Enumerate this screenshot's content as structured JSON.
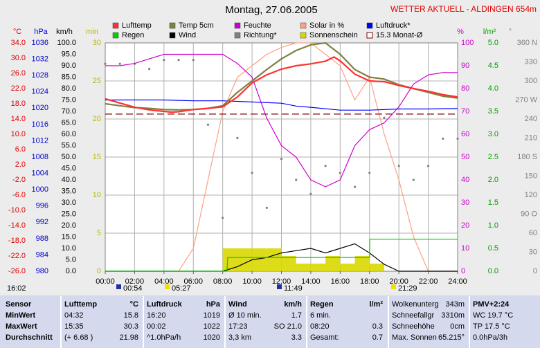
{
  "header": {
    "title": "Montag, 27.06.2005",
    "station": "WETTER AKTUELL - ALDINGEN 654m",
    "updated": "16:02",
    "markers": [
      "00:54",
      "05:27",
      "11:49",
      "21:29"
    ]
  },
  "chart_data": {
    "type": "line",
    "grid": true,
    "grid_axis": 3,
    "xlim": [
      0,
      24
    ],
    "xticks": [
      {
        "value": 0,
        "label": "00:00"
      },
      {
        "value": 2,
        "label": "02:00"
      },
      {
        "value": 4,
        "label": "04:00"
      },
      {
        "value": 6,
        "label": "06:00"
      },
      {
        "value": 8,
        "label": "08:00"
      },
      {
        "value": 10,
        "label": "10:00"
      },
      {
        "value": 12,
        "label": "12:00"
      },
      {
        "value": 14,
        "label": "14:00"
      },
      {
        "value": 16,
        "label": "16:00"
      },
      {
        "value": 18,
        "label": "18:00"
      },
      {
        "value": 20,
        "label": "20:00"
      },
      {
        "value": 22,
        "label": "22:00"
      },
      {
        "value": 24,
        "label": "24:00"
      }
    ],
    "axes": [
      {
        "label": "°C",
        "side": "left",
        "color": "#e00000",
        "lim": [
          -26,
          34
        ],
        "ticks": [
          {
            "value": -26,
            "label": "-26.0"
          },
          {
            "value": -22,
            "label": "-22.0"
          },
          {
            "value": -18,
            "label": "-18.0"
          },
          {
            "value": -14,
            "label": "-14.0"
          },
          {
            "value": -10,
            "label": "-10.0"
          },
          {
            "value": -6,
            "label": "-6.0"
          },
          {
            "value": -2,
            "label": "-2.0"
          },
          {
            "value": 2,
            "label": "2.0"
          },
          {
            "value": 6,
            "label": "6.0"
          },
          {
            "value": 10,
            "label": "10.0"
          },
          {
            "value": 14,
            "label": "14.0"
          },
          {
            "value": 18,
            "label": "18.0"
          },
          {
            "value": 22,
            "label": "22.0"
          },
          {
            "value": 26,
            "label": "26.0"
          },
          {
            "value": 30,
            "label": "30.0"
          },
          {
            "value": 34,
            "label": "34.0"
          }
        ]
      },
      {
        "label": "hPa",
        "side": "left",
        "color": "#0000d0",
        "lim": [
          980,
          1036
        ],
        "ticks": [
          980,
          984,
          988,
          992,
          996,
          1000,
          1004,
          1008,
          1012,
          1016,
          1020,
          1024,
          1028,
          1032,
          1036
        ]
      },
      {
        "label": "km/h",
        "side": "left",
        "color": "#000000",
        "lim": [
          0,
          100
        ],
        "ticks": [
          {
            "value": 0,
            "label": "0.0"
          },
          {
            "value": 5,
            "label": "5.0"
          },
          {
            "value": 10,
            "label": "10.0"
          },
          {
            "value": 15,
            "label": "15.0"
          },
          {
            "value": 20,
            "label": "20.0"
          },
          {
            "value": 25,
            "label": "25.0"
          },
          {
            "value": 30,
            "label": "30.0"
          },
          {
            "value": 35,
            "label": "35.0"
          },
          {
            "value": 40,
            "label": "40.0"
          },
          {
            "value": 45,
            "label": "45.0"
          },
          {
            "value": 50,
            "label": "50.0"
          },
          {
            "value": 55,
            "label": "55.0"
          },
          {
            "value": 60,
            "label": "60.0"
          },
          {
            "value": 65,
            "label": "65.0"
          },
          {
            "value": 70,
            "label": "70.0"
          },
          {
            "value": 75,
            "label": "75.0"
          },
          {
            "value": 80,
            "label": "80.0"
          },
          {
            "value": 85,
            "label": "85.0"
          },
          {
            "value": 90,
            "label": "90.0"
          },
          {
            "value": 95,
            "label": "95.0"
          },
          {
            "value": 100,
            "label": "100.0"
          }
        ]
      },
      {
        "label": "min",
        "side": "left",
        "color": "#b8b800",
        "lim": [
          0,
          30
        ],
        "ticks": [
          0,
          5,
          10,
          15,
          20,
          25,
          30
        ]
      },
      {
        "label": "%",
        "side": "right",
        "color": "#cc00cc",
        "lim": [
          0,
          100
        ],
        "ticks": [
          0,
          10,
          20,
          30,
          40,
          50,
          60,
          70,
          80,
          90,
          100
        ]
      },
      {
        "label": "l/m²",
        "side": "right",
        "color": "#00a000",
        "lim": [
          0,
          5
        ],
        "ticks": [
          {
            "value": 0,
            "label": "0.0"
          },
          {
            "value": 0.5,
            "label": "0.5"
          },
          {
            "value": 1,
            "label": "1.0"
          },
          {
            "value": 1.5,
            "label": "1.5"
          },
          {
            "value": 2,
            "label": "2.0"
          },
          {
            "value": 2.5,
            "label": "2.5"
          },
          {
            "value": 3,
            "label": "3.0"
          },
          {
            "value": 3.5,
            "label": "3.5"
          },
          {
            "value": 4,
            "label": "4.0"
          },
          {
            "value": 4.5,
            "label": "4.5"
          },
          {
            "value": 5,
            "label": "5.0"
          }
        ]
      },
      {
        "label": "°",
        "side": "right",
        "color": "#808080",
        "lim": [
          0,
          360
        ],
        "ticks": [
          0,
          30,
          60,
          {
            "value": 90,
            "label": "90 O"
          },
          120,
          150,
          {
            "value": 180,
            "label": "180 S"
          },
          210,
          240,
          {
            "value": 270,
            "label": "270 W"
          },
          300,
          330,
          {
            "value": 360,
            "label": "360 N"
          }
        ]
      }
    ],
    "series": [
      {
        "name": "Lufttemp",
        "color": "#ff3030",
        "axis": 0,
        "style": "line",
        "x": [
          0,
          1,
          2,
          3,
          4,
          4.53,
          5,
          6,
          7,
          8,
          9,
          10,
          11,
          12,
          13,
          14,
          15,
          15.58,
          16,
          17,
          18,
          19,
          20,
          21,
          22,
          23,
          24
        ],
        "values": [
          19.3,
          18.2,
          17.1,
          16.4,
          16.0,
          15.8,
          15.9,
          16.5,
          16.8,
          17.2,
          19.8,
          23.5,
          25.6,
          27.1,
          28.0,
          28.5,
          29.2,
          30.3,
          29.3,
          25.8,
          24.0,
          23.8,
          22.8,
          22.0,
          21.3,
          20.4,
          19.8
        ]
      },
      {
        "name": "Temp 5cm",
        "color": "#808040",
        "axis": 0,
        "style": "line",
        "x": [
          0,
          1,
          2,
          3,
          4,
          5,
          6,
          7,
          8,
          9,
          10,
          11,
          12,
          13,
          14,
          15,
          16,
          17,
          18,
          19,
          20,
          21,
          22,
          23,
          24
        ],
        "values": [
          18.0,
          17.5,
          17.0,
          16.8,
          16.5,
          16.4,
          16.5,
          16.8,
          17.5,
          21.0,
          24.0,
          27.0,
          29.8,
          32.0,
          33.5,
          34.0,
          31.0,
          27.0,
          25.0,
          24.5,
          23.0,
          22.0,
          21.0,
          20.0,
          19.5
        ]
      },
      {
        "name": "Feuchte",
        "color": "#cc00cc",
        "axis": 4,
        "style": "line",
        "x": [
          0,
          1,
          2,
          3,
          4,
          5,
          6,
          7,
          8,
          9,
          10,
          11,
          12,
          13,
          14,
          15,
          16,
          17,
          18,
          19,
          20,
          21,
          22,
          23,
          24
        ],
        "values": [
          90,
          90,
          91,
          93,
          95,
          95,
          95,
          95,
          95,
          91,
          85,
          67,
          55,
          50,
          40,
          37,
          40,
          55,
          62,
          65,
          72,
          82,
          86,
          87,
          87
        ]
      },
      {
        "name": "Solar in %",
        "color": "#ff9f80",
        "axis": 4,
        "style": "line",
        "x": [
          0,
          1,
          2,
          3,
          4,
          5,
          6,
          7,
          8,
          9,
          10,
          11,
          12,
          13,
          14,
          15,
          16,
          17,
          18,
          19,
          20,
          21,
          22,
          23,
          24
        ],
        "values": [
          0,
          0,
          0,
          0,
          0,
          0,
          10,
          40,
          70,
          85,
          90,
          95,
          98,
          100,
          100,
          95,
          90,
          75,
          85,
          60,
          40,
          15,
          0,
          0,
          0
        ]
      },
      {
        "name": "Luftdruck*",
        "color": "#0000ff",
        "axis": 1,
        "style": "line",
        "x": [
          0,
          2,
          4,
          6,
          8,
          10,
          12,
          13,
          14,
          16,
          18,
          20,
          22,
          24
        ],
        "values": [
          1022,
          1022,
          1022,
          1021.8,
          1021.8,
          1021.5,
          1021.2,
          1020.5,
          1020.2,
          1019.5,
          1019.5,
          1019.8,
          1019.8,
          1019.9
        ]
      },
      {
        "name": "Regen",
        "color": "#00d000",
        "axis": 5,
        "style": "line",
        "x": [
          0,
          8.3,
          8.34,
          18,
          18.02,
          24
        ],
        "values": [
          0,
          0,
          0.3,
          0.3,
          0.7,
          0.7
        ]
      },
      {
        "name": "Wind",
        "color": "#000000",
        "axis": 2,
        "style": "line",
        "x": [
          0,
          1,
          2,
          3,
          4,
          5,
          6,
          7,
          8,
          9,
          10,
          11,
          12,
          13,
          14,
          15,
          16,
          17,
          18,
          19,
          20,
          21,
          22,
          23,
          24
        ],
        "values": [
          0,
          0,
          0,
          0,
          0,
          0,
          0,
          0,
          0,
          2,
          5,
          6,
          8,
          9,
          10,
          8,
          10,
          12,
          8,
          3,
          0,
          0,
          0,
          0,
          0
        ]
      },
      {
        "name": "Richtung*",
        "color": "#808080",
        "axis": 6,
        "style": "dots",
        "x": [
          0,
          1,
          2,
          3,
          4,
          5,
          6,
          7,
          8,
          9,
          10,
          11,
          12,
          13,
          14,
          15,
          16,
          17,
          18,
          19,
          20,
          21,
          22,
          23,
          24
        ],
        "values": [
          327,
          327,
          327,
          319,
          333,
          333,
          333,
          231,
          84,
          210,
          155,
          100,
          177,
          144,
          122,
          166,
          155,
          133,
          155,
          242,
          166,
          144,
          166,
          209,
          209
        ]
      },
      {
        "name": "Sonnenschein",
        "color": "#d8d800",
        "axis": 3,
        "style": "bars",
        "x": [
          8,
          9,
          10,
          11,
          12,
          13,
          14,
          15,
          16,
          17,
          18
        ],
        "values": [
          3,
          3,
          3,
          3,
          2,
          1,
          1,
          2,
          1,
          2,
          1
        ]
      },
      {
        "name": "15.3 Monat-Ø",
        "color": "#800000",
        "axis": 0,
        "style": "dashed",
        "x": [
          0,
          24
        ],
        "values": [
          15.3,
          15.3
        ]
      }
    ]
  },
  "table": {
    "columns": [
      {
        "head": [
          "Sensor"
        ],
        "rows": [
          [
            "MinWert"
          ],
          [
            "MaxWert"
          ],
          [
            "Durchschnitt"
          ]
        ]
      },
      {
        "head": [
          "Lufttemp",
          "°C"
        ],
        "rows": [
          [
            "04:32",
            "15.8"
          ],
          [
            "15:35",
            "30.3"
          ],
          [
            "(+ 6.68 )",
            "21.98"
          ]
        ]
      },
      {
        "head": [
          "Luftdruck",
          "hPa"
        ],
        "rows": [
          [
            "16:20",
            "1019"
          ],
          [
            "00:02",
            "1022"
          ],
          [
            "^1.0hPa/h",
            "1020"
          ]
        ]
      },
      {
        "head": [
          "Wind",
          "km/h"
        ],
        "rows": [
          [
            "Ø 10 min.",
            "1.7"
          ],
          [
            "17:23",
            "SO 21.0"
          ],
          [
            "3,3 km",
            "3.3"
          ]
        ]
      },
      {
        "head": [
          "Regen",
          "l/m²"
        ],
        "rows": [
          [
            "6 min."
          ],
          [
            "08:20",
            "0.3"
          ],
          [
            "Gesamt:",
            "0.7"
          ]
        ]
      },
      {
        "head": [
          "Wolkenunterg",
          "343m"
        ],
        "rows": [
          [
            "Schneefallgr",
            "3310m"
          ],
          [
            "Schneehöhe",
            "0cm"
          ],
          [
            "Max. Sonnen",
            "65.215°"
          ]
        ]
      },
      {
        "head": [
          "PMV+2:24"
        ],
        "rows": [
          [
            "WC 19.7 °C"
          ],
          [
            "TP 17.5 °C"
          ],
          [
            "0.0hPa/3h"
          ]
        ]
      }
    ]
  }
}
